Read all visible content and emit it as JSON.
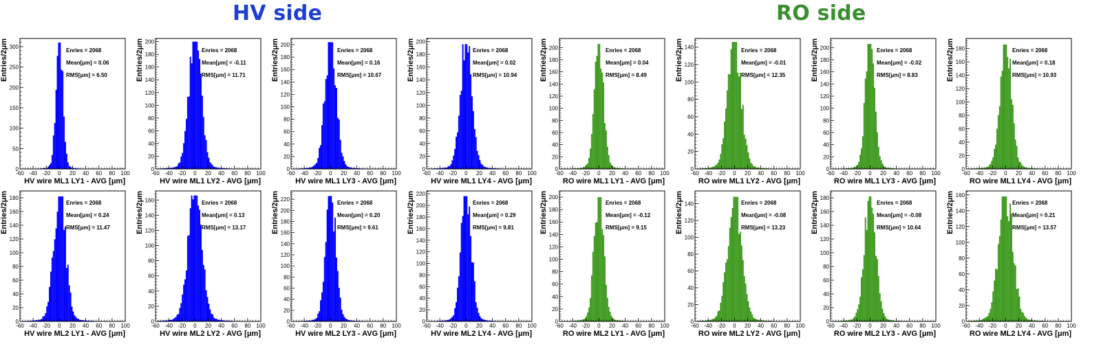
{
  "titles": {
    "hv": "HV side",
    "ro": "RO side"
  },
  "colors": {
    "hv_title": "#1f3fd1",
    "ro_title": "#3a8f2e",
    "hv_fill": "#0000ff",
    "ro_fill": "#3f9a1f"
  },
  "chart_data": [
    {
      "type": "bar",
      "side": "hv",
      "xlabel": "HV wire ML1 LY1 - AVG [μm]",
      "ylabel": "Entries/2μm",
      "xlim": [
        -60,
        100
      ],
      "ylim": [
        0,
        320
      ],
      "yticks": [
        0,
        50,
        100,
        150,
        200,
        250,
        300
      ],
      "xticks": [
        -60,
        -40,
        -20,
        0,
        20,
        40,
        60,
        80,
        100
      ],
      "bin_width": 2,
      "stats": {
        "entries": "Enries = 2068",
        "mean": "Mean[μm] = 0.06",
        "rms": "RMS[μm] = 6.50"
      },
      "peak": 310,
      "mean": 0.06,
      "rms": 6.5
    },
    {
      "type": "bar",
      "side": "hv",
      "xlabel": "HV wire ML1 LY2 - AVG [μm]",
      "ylabel": "Entries/2μm",
      "xlim": [
        -60,
        100
      ],
      "ylim": [
        0,
        205
      ],
      "yticks": [
        0,
        20,
        40,
        60,
        80,
        100,
        120,
        140,
        160,
        180,
        200
      ],
      "xticks": [
        -60,
        -40,
        -20,
        0,
        20,
        40,
        60,
        80,
        100
      ],
      "bin_width": 2,
      "stats": {
        "entries": "Enries = 2068",
        "mean": "Mean[μm] = -0.11",
        "rms": "RMS[μm] = 11.71"
      },
      "peak": 200,
      "mean": -0.11,
      "rms": 11.71
    },
    {
      "type": "bar",
      "side": "hv",
      "xlabel": "HV wire ML1 LY3 - AVG [μm]",
      "ylabel": "Entries/2μm",
      "xlim": [
        -60,
        100
      ],
      "ylim": [
        0,
        210
      ],
      "yticks": [
        0,
        20,
        40,
        60,
        80,
        100,
        120,
        140,
        160,
        180,
        200
      ],
      "xticks": [
        -60,
        -40,
        -20,
        0,
        20,
        40,
        60,
        80,
        100
      ],
      "bin_width": 2,
      "stats": {
        "entries": "Enries = 2068",
        "mean": "Mean[μm] = 0.16",
        "rms": "RMS[μm] = 10.67"
      },
      "peak": 204,
      "mean": 0.16,
      "rms": 10.67
    },
    {
      "type": "bar",
      "side": "hv",
      "xlabel": "HV wire ML1 LY4 - AVG [μm]",
      "ylabel": "Entries/2μm",
      "xlim": [
        -60,
        100
      ],
      "ylim": [
        0,
        205
      ],
      "yticks": [
        0,
        20,
        40,
        60,
        80,
        100,
        120,
        140,
        160,
        180,
        200
      ],
      "xticks": [
        -60,
        -40,
        -20,
        0,
        20,
        40,
        60,
        80,
        100
      ],
      "bin_width": 2,
      "stats": {
        "entries": "Enries = 2068",
        "mean": "Mean[μm] = 0.02",
        "rms": "RMS[μm] = 10.94"
      },
      "peak": 196,
      "mean": 0.02,
      "rms": 10.94
    },
    {
      "type": "bar",
      "side": "ro",
      "xlabel": "RO wire ML1 LY1 - AVG [μm]",
      "ylabel": "Entries/2μm",
      "xlim": [
        -60,
        100
      ],
      "ylim": [
        0,
        215
      ],
      "yticks": [
        0,
        20,
        40,
        60,
        80,
        100,
        120,
        140,
        160,
        180,
        200
      ],
      "xticks": [
        -60,
        -40,
        -20,
        0,
        20,
        40,
        60,
        80,
        100
      ],
      "bin_width": 2,
      "stats": {
        "entries": "Enries = 2068",
        "mean": "Mean[μm] = 0.04",
        "rms": "RMS[μm] = 8.49"
      },
      "peak": 206,
      "mean": 0.04,
      "rms": 8.49
    },
    {
      "type": "bar",
      "side": "ro",
      "xlabel": "RO wire ML1 LY2 - AVG [μm]",
      "ylabel": "Entries/2μm",
      "xlim": [
        -60,
        100
      ],
      "ylim": [
        0,
        150
      ],
      "yticks": [
        0,
        20,
        40,
        60,
        80,
        100,
        120,
        140
      ],
      "xticks": [
        -60,
        -40,
        -20,
        0,
        20,
        40,
        60,
        80,
        100
      ],
      "bin_width": 2,
      "stats": {
        "entries": "Enries = 2068",
        "mean": "Mean[μm] = -0.01",
        "rms": "RMS[μm] = 12.35"
      },
      "peak": 146,
      "mean": -0.01,
      "rms": 12.35
    },
    {
      "type": "bar",
      "side": "ro",
      "xlabel": "RO wire ML1 LY3 - AVG [μm]",
      "ylabel": "Entries/2μm",
      "xlim": [
        -60,
        100
      ],
      "ylim": [
        0,
        215
      ],
      "yticks": [
        0,
        20,
        40,
        60,
        80,
        100,
        120,
        140,
        160,
        180,
        200
      ],
      "xticks": [
        -60,
        -40,
        -20,
        0,
        20,
        40,
        60,
        80,
        100
      ],
      "bin_width": 2,
      "stats": {
        "entries": "Enries = 2068",
        "mean": "Mean[μm] = -0.02",
        "rms": "RMS[μm] = 8.83"
      },
      "peak": 206,
      "mean": -0.02,
      "rms": 8.83
    },
    {
      "type": "bar",
      "side": "ro",
      "xlabel": "RO wire ML1 LY4 - AVG [μm]",
      "ylabel": "Entries/2μm",
      "xlim": [
        -60,
        100
      ],
      "ylim": [
        0,
        195
      ],
      "yticks": [
        0,
        20,
        40,
        60,
        80,
        100,
        120,
        140,
        160,
        180
      ],
      "xticks": [
        -60,
        -40,
        -20,
        0,
        20,
        40,
        60,
        80,
        100
      ],
      "bin_width": 2,
      "stats": {
        "entries": "Enries = 2068",
        "mean": "Mean[μm] = 0.18",
        "rms": "RMS[μm] = 10.93"
      },
      "peak": 186,
      "mean": 0.18,
      "rms": 10.93
    },
    {
      "type": "bar",
      "side": "hv",
      "xlabel": "HV wire ML2 LY1 - AVG [μm]",
      "ylabel": "Entries/2μm",
      "xlim": [
        -60,
        100
      ],
      "ylim": [
        0,
        190
      ],
      "yticks": [
        0,
        20,
        40,
        60,
        80,
        100,
        120,
        140,
        160,
        180
      ],
      "xticks": [
        -60,
        -40,
        -20,
        0,
        20,
        40,
        60,
        80,
        100
      ],
      "bin_width": 2,
      "stats": {
        "entries": "Enries = 2068",
        "mean": "Mean[μm] = 0.24",
        "rms": "RMS[μm] = 11.47"
      },
      "peak": 182,
      "mean": 0.24,
      "rms": 11.47
    },
    {
      "type": "bar",
      "side": "hv",
      "xlabel": "HV wire ML2 LY2 - AVG [μm]",
      "ylabel": "Entries/2μm",
      "xlim": [
        -60,
        100
      ],
      "ylim": [
        0,
        172
      ],
      "yticks": [
        0,
        20,
        40,
        60,
        80,
        100,
        120,
        140,
        160
      ],
      "xticks": [
        -60,
        -40,
        -20,
        0,
        20,
        40,
        60,
        80,
        100
      ],
      "bin_width": 2,
      "stats": {
        "entries": "Enries = 2068",
        "mean": "Mean[μm] = 0.13",
        "rms": "RMS[μm] = 13.17"
      },
      "peak": 166,
      "mean": 0.13,
      "rms": 13.17
    },
    {
      "type": "bar",
      "side": "hv",
      "xlabel": "HV wire ML2 LY3 - AVG [μm]",
      "ylabel": "Entries/2μm",
      "xlim": [
        -60,
        100
      ],
      "ylim": [
        0,
        235
      ],
      "yticks": [
        0,
        20,
        40,
        60,
        80,
        100,
        120,
        140,
        160,
        180,
        200,
        220
      ],
      "xticks": [
        -60,
        -40,
        -20,
        0,
        20,
        40,
        60,
        80,
        100
      ],
      "bin_width": 2,
      "stats": {
        "entries": "Enries = 2068",
        "mean": "Mean[μm] = 0.20",
        "rms": "RMS[μm] = 9.61"
      },
      "peak": 226,
      "mean": 0.2,
      "rms": 9.61
    },
    {
      "type": "bar",
      "side": "hv",
      "xlabel": "HV wire ML2 LY4 - AVG [μm]",
      "ylabel": "Entries/2μm",
      "xlim": [
        -60,
        100
      ],
      "ylim": [
        0,
        225
      ],
      "yticks": [
        0,
        20,
        40,
        60,
        80,
        100,
        120,
        140,
        160,
        180,
        200,
        220
      ],
      "xticks": [
        -60,
        -40,
        -20,
        0,
        20,
        40,
        60,
        80,
        100
      ],
      "bin_width": 2,
      "stats": {
        "entries": "Enries = 2068",
        "mean": "Mean[μm] = 0.29",
        "rms": "RMS[μm] = 9.81"
      },
      "peak": 216,
      "mean": 0.29,
      "rms": 9.81
    },
    {
      "type": "bar",
      "side": "ro",
      "xlabel": "RO wire ML2 LY1 - AVG [μm]",
      "ylabel": "Entries/2μm",
      "xlim": [
        -60,
        100
      ],
      "ylim": [
        0,
        210
      ],
      "yticks": [
        0,
        20,
        40,
        60,
        80,
        100,
        120,
        140,
        160,
        180,
        200
      ],
      "xticks": [
        -60,
        -40,
        -20,
        0,
        20,
        40,
        60,
        80,
        100
      ],
      "bin_width": 2,
      "stats": {
        "entries": "Enries = 2068",
        "mean": "Mean[μm] = -0.12",
        "rms": "RMS[μm] = 9.15"
      },
      "peak": 200,
      "mean": -0.12,
      "rms": 9.15
    },
    {
      "type": "bar",
      "side": "ro",
      "xlabel": "RO wire ML2 LY2 - AVG [μm]",
      "ylabel": "Entries/2μm",
      "xlim": [
        -60,
        100
      ],
      "ylim": [
        0,
        155
      ],
      "yticks": [
        0,
        20,
        40,
        60,
        80,
        100,
        120,
        140
      ],
      "xticks": [
        -60,
        -40,
        -20,
        0,
        20,
        40,
        60,
        80,
        100
      ],
      "bin_width": 2,
      "stats": {
        "entries": "Enries = 2068",
        "mean": "Mean[μm] = -0.08",
        "rms": "RMS[μm] = 13.23"
      },
      "peak": 148,
      "mean": -0.08,
      "rms": 13.23
    },
    {
      "type": "bar",
      "side": "ro",
      "xlabel": "RO wire ML2 LY3 - AVG [μm]",
      "ylabel": "Entries/2μm",
      "xlim": [
        -60,
        100
      ],
      "ylim": [
        0,
        190
      ],
      "yticks": [
        0,
        20,
        40,
        60,
        80,
        100,
        120,
        140,
        160,
        180
      ],
      "xticks": [
        -60,
        -40,
        -20,
        0,
        20,
        40,
        60,
        80,
        100
      ],
      "bin_width": 2,
      "stats": {
        "entries": "Enries = 2068",
        "mean": "Mean[μm] = -0.08",
        "rms": "RMS[μm] = 10.64"
      },
      "peak": 182,
      "mean": -0.08,
      "rms": 10.64
    },
    {
      "type": "bar",
      "side": "ro",
      "xlabel": "RO wire ML2 LY4 - AVG [μm]",
      "ylabel": "Entries/2μm",
      "xlim": [
        -60,
        100
      ],
      "ylim": [
        0,
        165
      ],
      "yticks": [
        0,
        20,
        40,
        60,
        80,
        100,
        120,
        140,
        160
      ],
      "xticks": [
        -60,
        -40,
        -20,
        0,
        20,
        40,
        60,
        80,
        100
      ],
      "bin_width": 2,
      "stats": {
        "entries": "Enries = 2068",
        "mean": "Mean[μm] = 0.21",
        "rms": "RMS[μm] = 13.57"
      },
      "peak": 158,
      "mean": 0.21,
      "rms": 13.57
    }
  ]
}
